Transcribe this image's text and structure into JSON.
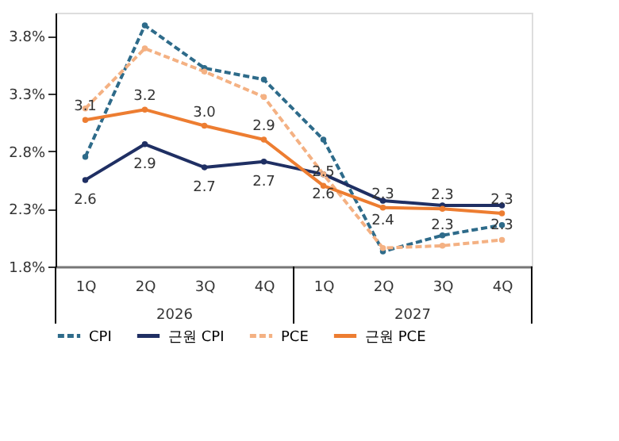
{
  "chart_data": {
    "type": "line",
    "categories": [
      "1Q",
      "2Q",
      "3Q",
      "4Q",
      "1Q",
      "2Q",
      "3Q",
      "4Q"
    ],
    "series": [
      {
        "name": "CPI",
        "color": "#2e6b8a",
        "line_style": "dashed",
        "values": [
          2.75,
          3.89,
          3.52,
          3.42,
          2.9,
          1.93,
          2.07,
          2.16
        ]
      },
      {
        "name": "근원 CPI",
        "color": "#1f2f63",
        "line_style": "solid",
        "values": [
          2.55,
          2.86,
          2.66,
          2.71,
          2.6,
          2.37,
          2.33,
          2.33
        ],
        "value_labels": [
          "2.6",
          "2.9",
          "2.7",
          "2.7",
          "2.6",
          "2.4",
          "2.3",
          "2.3"
        ]
      },
      {
        "name": "PCE",
        "color": "#f4b183",
        "line_style": "dashed",
        "values": [
          3.17,
          3.69,
          3.49,
          3.27,
          2.6,
          1.96,
          1.98,
          2.03
        ]
      },
      {
        "name": "근원 PCE",
        "color": "#ed7d31",
        "line_style": "solid",
        "values": [
          3.07,
          3.16,
          3.02,
          2.9,
          2.5,
          2.31,
          2.3,
          2.26
        ],
        "value_labels": [
          "3.1",
          "3.2",
          "3.0",
          "2.9",
          "2.5",
          "2.3",
          "2.3",
          "2.3"
        ]
      }
    ],
    "ylim": [
      1.8,
      4.0
    ],
    "yticks": [
      {
        "value": 1.8,
        "label": "1.8%"
      },
      {
        "value": 2.3,
        "label": "2.3%"
      },
      {
        "value": 2.8,
        "label": "2.8%"
      },
      {
        "value": 3.3,
        "label": "3.3%"
      },
      {
        "value": 3.8,
        "label": "3.8%"
      }
    ],
    "annotations": [
      "2026",
      "2027"
    ],
    "marker": "circle",
    "grid": false,
    "legend": "bottom"
  }
}
